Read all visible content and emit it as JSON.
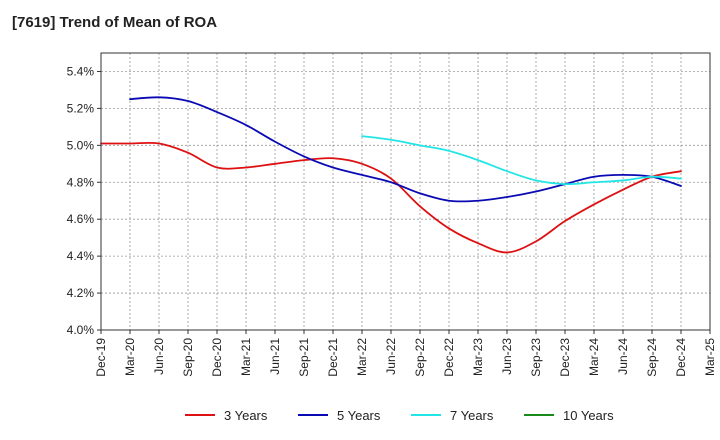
{
  "chart_data": {
    "type": "line",
    "title": "[7619]  Trend of Mean of ROA",
    "xlabel": "",
    "ylabel": "",
    "ylim": [
      4.0,
      5.5
    ],
    "y_ticks": [
      4.0,
      4.2,
      4.4,
      4.6,
      4.8,
      5.0,
      5.2,
      5.4
    ],
    "y_tick_labels": [
      "4.0%",
      "4.2%",
      "4.4%",
      "4.6%",
      "4.8%",
      "5.0%",
      "5.2%",
      "5.4%"
    ],
    "categories": [
      "Dec-19",
      "Mar-20",
      "Jun-20",
      "Sep-20",
      "Dec-20",
      "Mar-21",
      "Jun-21",
      "Sep-21",
      "Dec-21",
      "Mar-22",
      "Jun-22",
      "Sep-22",
      "Dec-22",
      "Mar-23",
      "Jun-23",
      "Sep-23",
      "Dec-23",
      "Mar-24",
      "Jun-24",
      "Sep-24",
      "Dec-24",
      "Mar-25"
    ],
    "grid": true,
    "legend_position": "bottom",
    "series": [
      {
        "name": "3 Years",
        "color": "#dd1111",
        "values": [
          5.01,
          5.01,
          5.01,
          4.96,
          4.88,
          4.88,
          4.9,
          4.92,
          4.93,
          4.9,
          4.82,
          4.67,
          4.55,
          4.47,
          4.42,
          4.48,
          4.59,
          4.68,
          4.76,
          4.83,
          4.86,
          null
        ]
      },
      {
        "name": "5 Years",
        "color": "#0a0ab4",
        "values": [
          null,
          5.25,
          5.26,
          5.24,
          5.18,
          5.11,
          5.02,
          4.94,
          4.88,
          4.84,
          4.8,
          4.74,
          4.7,
          4.7,
          4.72,
          4.75,
          4.79,
          4.83,
          4.84,
          4.83,
          4.78,
          null
        ]
      },
      {
        "name": "7 Years",
        "color": "#22e5e5",
        "values": [
          null,
          null,
          null,
          null,
          null,
          null,
          null,
          null,
          null,
          5.05,
          5.03,
          5.0,
          4.97,
          4.92,
          4.86,
          4.81,
          4.79,
          4.8,
          4.81,
          4.83,
          4.82,
          null
        ]
      },
      {
        "name": "10 Years",
        "color": "#1a8a1a",
        "values": [
          null,
          null,
          null,
          null,
          null,
          null,
          null,
          null,
          null,
          null,
          null,
          null,
          null,
          null,
          null,
          null,
          null,
          null,
          null,
          null,
          null,
          null
        ]
      }
    ]
  }
}
